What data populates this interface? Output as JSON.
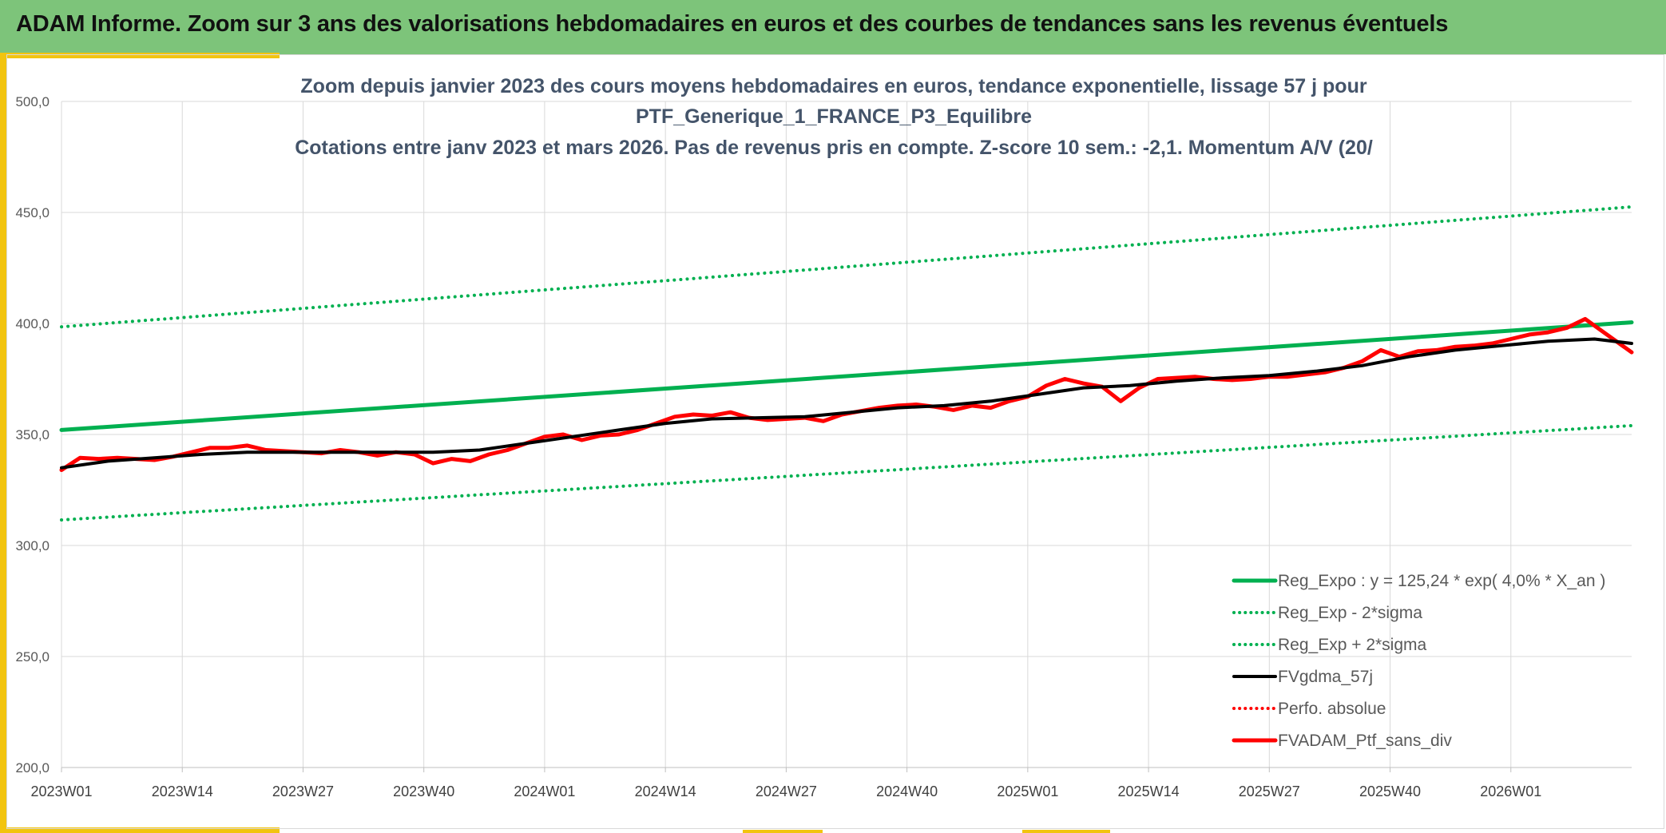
{
  "header": {
    "title": "ADAM Informe. Zoom sur 3 ans des valorisations hebdomadaires en euros et des courbes de tendances sans les revenus éventuels"
  },
  "colors": {
    "banner": "#7dc47a",
    "accent_yellow": "#f2c40f",
    "reg_expo": "#00b050",
    "fvgdma": "#000000",
    "ptf": "#ff0000"
  },
  "chart_data": {
    "type": "line",
    "title_lines": [
      "Zoom depuis janvier 2023 des cours moyens hebdomadaires en euros, tendance exponentielle, lissage 57 j pour",
      "PTF_Generique_1_FRANCE_P3_Equilibre",
      "Cotations entre janv 2023 et mars 2026. Pas de revenus pris en compte. Z-score 10 sem.: -2,1. Momentum A/V (20/"
    ],
    "ylim": [
      200,
      500
    ],
    "yticks": [
      "200,0",
      "250,0",
      "300,0",
      "350,0",
      "400,0",
      "450,0",
      "500,0"
    ],
    "ytick_values": [
      200,
      250,
      300,
      350,
      400,
      450,
      500
    ],
    "x_categories_count": 170,
    "xticks": [
      "2023W01",
      "2023W14",
      "2023W27",
      "2023W40",
      "2024W01",
      "2024W14",
      "2024W27",
      "2024W40",
      "2025W01",
      "2025W14",
      "2025W27",
      "2025W40",
      "2026W01"
    ],
    "xtick_indices": [
      0,
      13,
      26,
      39,
      52,
      65,
      78,
      91,
      104,
      117,
      130,
      143,
      156
    ],
    "grid": true,
    "legend_position": "bottom-right",
    "series": [
      {
        "name": "Reg_Expo : y = 125,24 * exp( 4,0% *  X_an )",
        "style": "solid",
        "color": "#00b050",
        "width": 5,
        "x": [
          0,
          169
        ],
        "y": [
          352,
          400.5
        ]
      },
      {
        "name": "Reg_Exp - 2*sigma",
        "style": "dotted",
        "color": "#00b050",
        "width": 4,
        "x": [
          0,
          169
        ],
        "y": [
          311.5,
          354
        ]
      },
      {
        "name": "Reg_Exp + 2*sigma",
        "style": "dotted",
        "color": "#00b050",
        "width": 4,
        "x": [
          0,
          169
        ],
        "y": [
          398.5,
          452.5
        ]
      },
      {
        "name": "FVgdma_57j",
        "style": "solid",
        "color": "#000000",
        "width": 4,
        "x": [
          0,
          5,
          10,
          15,
          20,
          25,
          30,
          35,
          40,
          45,
          50,
          55,
          60,
          65,
          70,
          75,
          80,
          85,
          90,
          95,
          100,
          105,
          110,
          115,
          120,
          125,
          130,
          135,
          140,
          145,
          150,
          155,
          160,
          165,
          169
        ],
        "y": [
          335,
          338,
          339.5,
          341,
          342,
          342,
          342,
          342,
          342,
          343,
          346,
          349,
          352,
          355,
          357,
          357.5,
          358,
          360,
          362,
          363,
          365,
          368,
          371,
          372,
          374,
          375.5,
          376.5,
          378.5,
          381,
          385,
          388,
          390,
          392,
          393,
          391
        ]
      },
      {
        "name": "Perfo. absolue",
        "style": "dotted",
        "color": "#ff0000",
        "width": 4,
        "x": [],
        "y": []
      },
      {
        "name": "FVADAM_Ptf_sans_div",
        "style": "solid",
        "color": "#ff0000",
        "width": 5,
        "x": [
          0,
          2,
          4,
          6,
          8,
          10,
          12,
          14,
          16,
          18,
          20,
          22,
          24,
          26,
          28,
          30,
          32,
          34,
          36,
          38,
          40,
          42,
          44,
          46,
          48,
          50,
          52,
          54,
          56,
          58,
          60,
          62,
          64,
          66,
          68,
          70,
          72,
          74,
          76,
          78,
          80,
          82,
          84,
          86,
          88,
          90,
          92,
          94,
          96,
          98,
          100,
          102,
          104,
          106,
          108,
          110,
          112,
          114,
          116,
          118,
          120,
          122,
          124,
          126,
          128,
          130,
          132,
          134,
          136,
          138,
          140,
          142,
          144,
          146,
          148,
          150,
          152,
          154,
          156,
          158,
          160,
          162,
          164,
          166,
          168,
          169
        ],
        "y": [
          334,
          339.5,
          339,
          339.5,
          339,
          338.5,
          340,
          342,
          344,
          344,
          345,
          343,
          342.5,
          342,
          341.5,
          343,
          342,
          340.5,
          342,
          341,
          337,
          339,
          338,
          341,
          343,
          346,
          349,
          350,
          347.5,
          349.5,
          350,
          352,
          355,
          358,
          359,
          358.5,
          360,
          357.5,
          356.5,
          357,
          357.5,
          356,
          359,
          360.5,
          362,
          363,
          363.5,
          362.5,
          361,
          363,
          362,
          365,
          367,
          372,
          375,
          373,
          371.5,
          365,
          371,
          375,
          375.5,
          376,
          375,
          374.5,
          375,
          376,
          376,
          377,
          378,
          380,
          383,
          388,
          385,
          387.5,
          388,
          389.5,
          390,
          391,
          393,
          395,
          396,
          398,
          402,
          396,
          390,
          387
        ]
      }
    ]
  }
}
